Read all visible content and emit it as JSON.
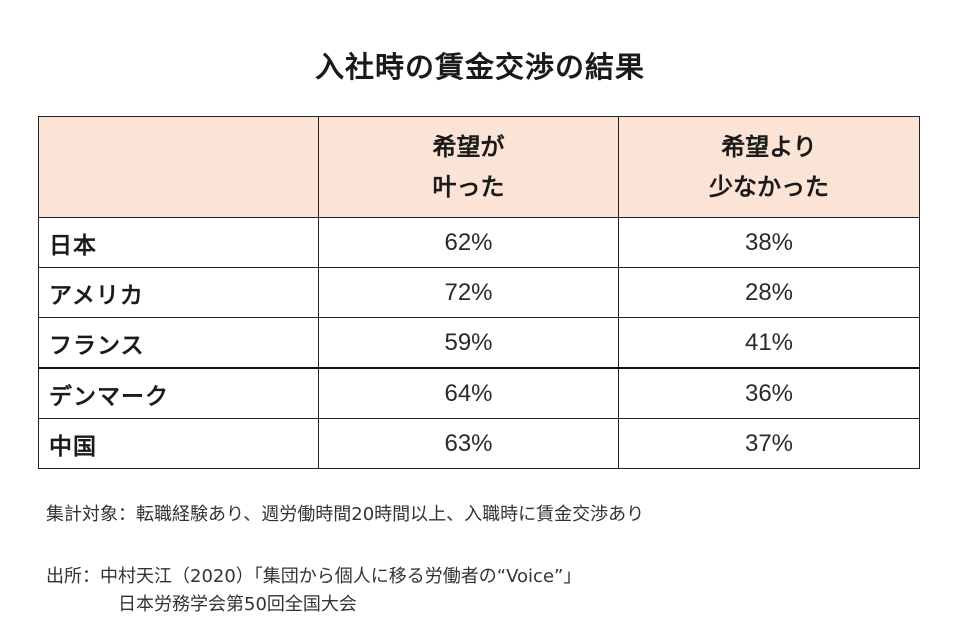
{
  "title": "入社時の賃金交渉の結果",
  "table": {
    "header": {
      "corner": "",
      "col1_line1": "希望が",
      "col1_line2": "叶った",
      "col2_line1": "希望より",
      "col2_line2": "少なかった"
    },
    "rows": [
      {
        "country": "日本",
        "fulfilled": "62%",
        "less": "38%"
      },
      {
        "country": "アメリカ",
        "fulfilled": "72%",
        "less": "28%"
      },
      {
        "country": "フランス",
        "fulfilled": "59%",
        "less": "41%"
      },
      {
        "country": "デンマーク",
        "fulfilled": "64%",
        "less": "36%"
      },
      {
        "country": "中国",
        "fulfilled": "63%",
        "less": "37%"
      }
    ]
  },
  "notes": {
    "scope": "集計対象：転職経験あり、週労働時間20時間以上、入職時に賃金交渉あり",
    "source_line1": "出所：中村天江（2020）「集団から個人に移る労働者の“Voice”」",
    "source_line2": "日本労務学会第50回全国大会"
  },
  "colors": {
    "header_bg": "#fbe4d6",
    "border": "#222222"
  },
  "chart_data": {
    "type": "table",
    "title": "入社時の賃金交渉の結果",
    "columns": [
      "",
      "希望が叶った",
      "希望より少なかった"
    ],
    "categories": [
      "日本",
      "アメリカ",
      "フランス",
      "デンマーク",
      "中国"
    ],
    "series": [
      {
        "name": "希望が叶った",
        "values": [
          62,
          72,
          59,
          64,
          63
        ]
      },
      {
        "name": "希望より少なかった",
        "values": [
          38,
          28,
          41,
          36,
          37
        ]
      }
    ],
    "unit": "%"
  }
}
